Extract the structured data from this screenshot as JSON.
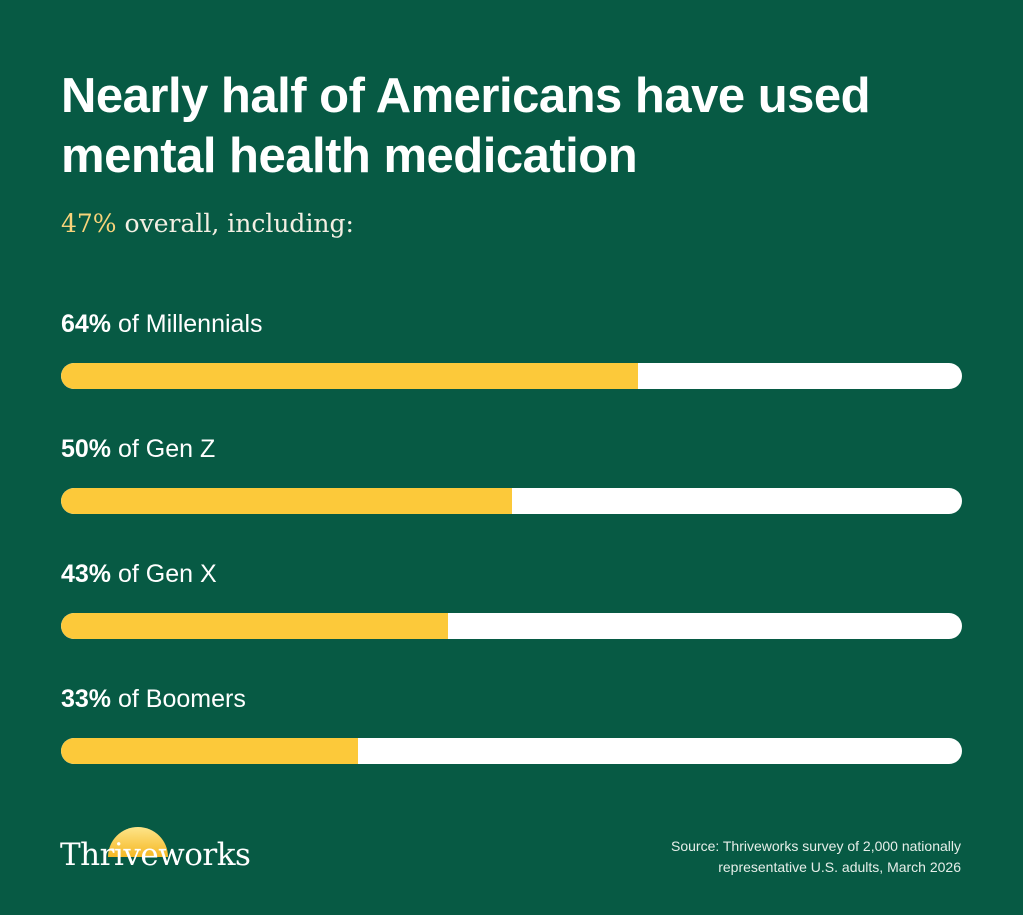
{
  "colors": {
    "background": "#075a44",
    "bar_fill": "#fcc93a",
    "bar_track": "#ffffff",
    "subtitle_accent": "#f8d37a"
  },
  "title": "Nearly half of Americans have used mental health medication",
  "subtitle": {
    "highlight": "47%",
    "rest": "overall, including:"
  },
  "chart_data": {
    "type": "bar",
    "orientation": "horizontal",
    "title": "Nearly half of Americans have used mental health medication",
    "subtitle": "47% overall, including:",
    "overall_value": 47,
    "unit": "%",
    "xlim": [
      0,
      100
    ],
    "grid": false,
    "categories": [
      "Millennials",
      "Gen Z",
      "Gen X",
      "Boomers"
    ],
    "values": [
      64,
      50,
      43,
      33
    ],
    "labels": [
      {
        "value_text": "64%",
        "text": "of Millennials"
      },
      {
        "value_text": "50%",
        "text": "of Gen Z"
      },
      {
        "value_text": "43%",
        "text": "of Gen X"
      },
      {
        "value_text": "33%",
        "text": "of Boomers"
      }
    ]
  },
  "brand": {
    "logo_text": "Thriveworks",
    "logo_icon": "rising-sun-icon"
  },
  "source": {
    "line1": "Source: Thriveworks survey of 2,000 nationally",
    "line2": "representative U.S. adults, March 2026"
  }
}
